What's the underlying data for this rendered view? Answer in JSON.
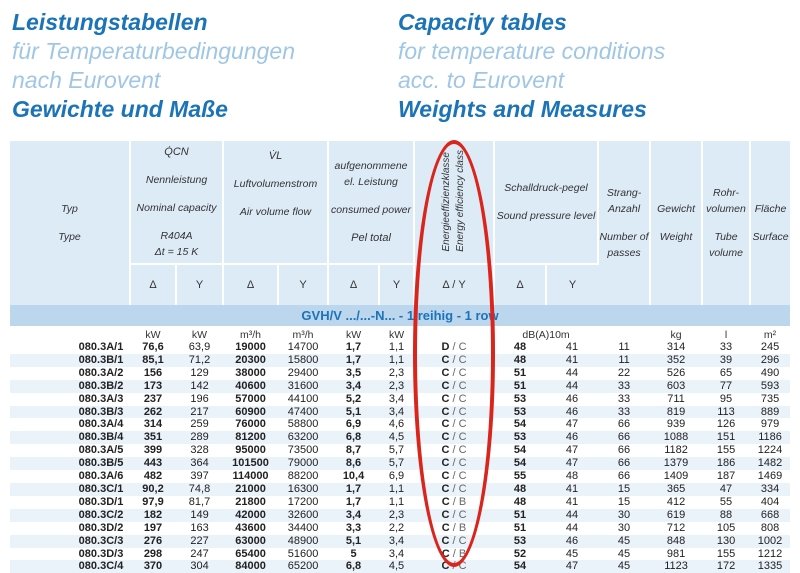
{
  "header": {
    "de": [
      "Leistungstabellen",
      "für Temperaturbedingungen",
      "nach Eurovent",
      "Gewichte und Maße"
    ],
    "en": [
      "Capacity tables",
      "for temperature conditions",
      "acc. to Eurovent",
      "Weights and Measures"
    ]
  },
  "table": {
    "title": "GVH/V .../...-N... - 1 reihig - 1 row",
    "headers": {
      "typ": "Typ",
      "type": "Type",
      "cap_sym": "Q̇CN",
      "cap_de": "Nennleistung",
      "cap_en": "Nominal capacity",
      "cap_ref": "R404A",
      "cap_dt": "Δt = 15 K",
      "air_sym": "V̇L",
      "air_de": "Luftvolumenstrom",
      "air_en": "Air volume flow",
      "pow_de": "aufgenommene el. Leistung",
      "pow_en": "consumed power",
      "pow_sym": "Pel total",
      "ee_de": "Energieeffizienzklasse",
      "ee_en": "Energy efficiency class",
      "snd_de": "Schalldruck-pegel",
      "snd_en": "Sound pressure level",
      "str_de": "Strang-Anzahl",
      "str_en": "Number of passes",
      "wt_de": "Gewicht",
      "wt_en": "Weight",
      "tv_de": "Rohr-volumen",
      "tv_en": "Tube volume",
      "sf_de": "Fläche",
      "sf_en": "Surface",
      "delta": "Δ",
      "y": "Y",
      "delta_y": "Δ / Y"
    },
    "units": [
      "kW",
      "kW",
      "m³/h",
      "m³/h",
      "kW",
      "kW",
      "",
      "dB(A)10m",
      "",
      "kg",
      "l",
      "m²"
    ],
    "rows": [
      [
        "080.3A/1",
        "76,6",
        "63,9",
        "19000",
        "14700",
        "1,7",
        "1,1",
        "D",
        "C",
        "48",
        "41",
        "11",
        "314",
        "33",
        "245"
      ],
      [
        "080.3B/1",
        "85,1",
        "71,2",
        "20300",
        "15800",
        "1,7",
        "1,1",
        "C",
        "C",
        "48",
        "41",
        "11",
        "352",
        "39",
        "296"
      ],
      [
        "080.3A/2",
        "156",
        "129",
        "38000",
        "29400",
        "3,5",
        "2,3",
        "C",
        "C",
        "51",
        "44",
        "22",
        "526",
        "65",
        "490"
      ],
      [
        "080.3B/2",
        "173",
        "142",
        "40600",
        "31600",
        "3,4",
        "2,3",
        "C",
        "C",
        "51",
        "44",
        "33",
        "603",
        "77",
        "593"
      ],
      [
        "080.3A/3",
        "237",
        "196",
        "57000",
        "44100",
        "5,2",
        "3,4",
        "C",
        "C",
        "53",
        "46",
        "33",
        "711",
        "95",
        "735"
      ],
      [
        "080.3B/3",
        "262",
        "217",
        "60900",
        "47400",
        "5,1",
        "3,4",
        "C",
        "C",
        "53",
        "46",
        "33",
        "819",
        "113",
        "889"
      ],
      [
        "080.3A/4",
        "314",
        "259",
        "76000",
        "58800",
        "6,9",
        "4,6",
        "C",
        "C",
        "54",
        "47",
        "66",
        "939",
        "126",
        "979"
      ],
      [
        "080.3B/4",
        "351",
        "289",
        "81200",
        "63200",
        "6,8",
        "4,5",
        "C",
        "C",
        "53",
        "46",
        "66",
        "1088",
        "151",
        "1186"
      ],
      [
        "080.3A/5",
        "399",
        "328",
        "95000",
        "73500",
        "8,7",
        "5,7",
        "C",
        "C",
        "54",
        "47",
        "66",
        "1182",
        "155",
        "1224"
      ],
      [
        "080.3B/5",
        "443",
        "364",
        "101500",
        "79000",
        "8,6",
        "5,7",
        "C",
        "C",
        "54",
        "47",
        "66",
        "1379",
        "186",
        "1482"
      ],
      [
        "080.3A/6",
        "482",
        "397",
        "114000",
        "88200",
        "10,4",
        "6,9",
        "C",
        "C",
        "55",
        "48",
        "66",
        "1409",
        "187",
        "1469"
      ],
      [
        "080.3C/1",
        "90,2",
        "74,8",
        "21000",
        "16300",
        "1,7",
        "1,1",
        "C",
        "C",
        "48",
        "41",
        "15",
        "365",
        "47",
        "334"
      ],
      [
        "080.3D/1",
        "97,9",
        "81,7",
        "21800",
        "17200",
        "1,7",
        "1,1",
        "C",
        "B",
        "48",
        "41",
        "15",
        "412",
        "55",
        "404"
      ],
      [
        "080.3C/2",
        "182",
        "149",
        "42000",
        "32600",
        "3,4",
        "2,3",
        "C",
        "C",
        "51",
        "44",
        "30",
        "619",
        "88",
        "668"
      ],
      [
        "080.3D/2",
        "197",
        "163",
        "43600",
        "34400",
        "3,3",
        "2,2",
        "C",
        "B",
        "51",
        "44",
        "30",
        "712",
        "105",
        "808"
      ],
      [
        "080.3C/3",
        "276",
        "227",
        "63000",
        "48900",
        "5,1",
        "3,4",
        "C",
        "C",
        "53",
        "46",
        "45",
        "848",
        "130",
        "1002"
      ],
      [
        "080.3D/3",
        "298",
        "247",
        "65400",
        "51600",
        "5",
        "3,4",
        "C",
        "B",
        "52",
        "45",
        "45",
        "981",
        "155",
        "1212"
      ],
      [
        "080.3C/4",
        "370",
        "304",
        "84000",
        "65200",
        "6,8",
        "4,5",
        "C",
        "C",
        "54",
        "47",
        "45",
        "1123",
        "172",
        "1335"
      ]
    ]
  },
  "colors": {
    "brand_blue": "#1b74b8",
    "light_blue": "#9fc7e5",
    "header_bg": "#ddebf7",
    "title_bg": "#bcd6ee",
    "highlight_oval": "#d9251c"
  }
}
